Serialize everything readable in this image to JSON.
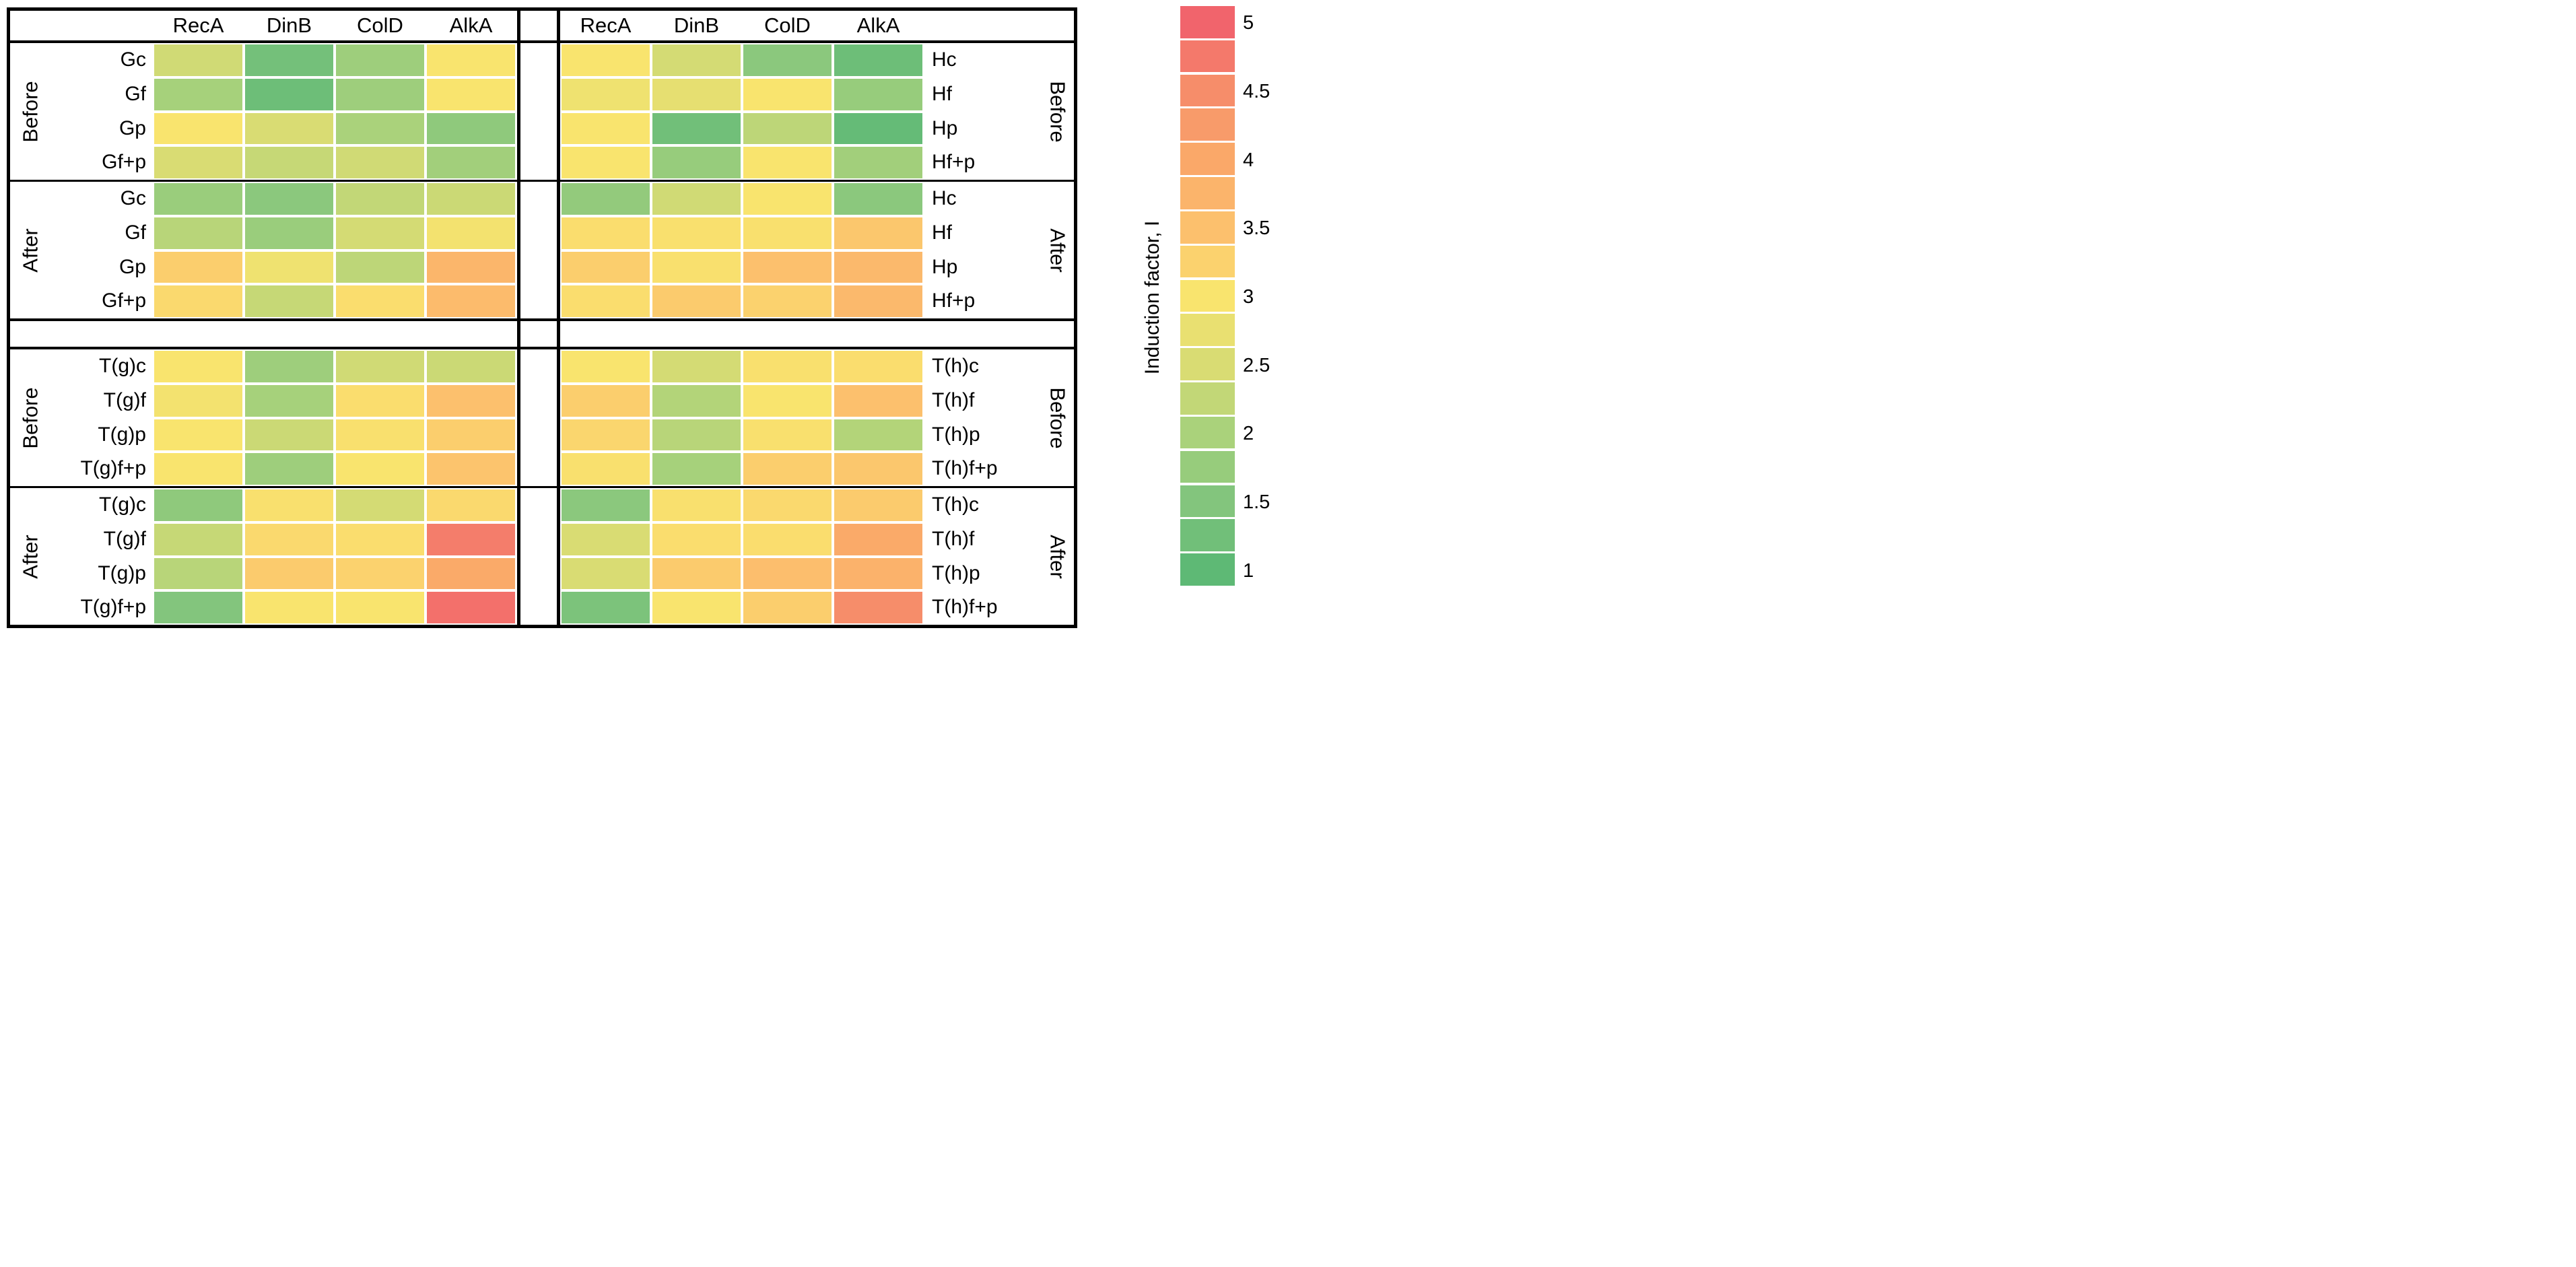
{
  "chart_data": {
    "type": "heatmap",
    "columns": [
      "RecA",
      "DinB",
      "ColD",
      "AlkA"
    ],
    "colorbar": {
      "title": "Induction factor, I",
      "tick_labels": [
        "5",
        "4.5",
        "4",
        "3.5",
        "3",
        "2.5",
        "2",
        "1.5",
        "1"
      ],
      "min": 1,
      "max": 5,
      "n_blocks": 17
    },
    "palette_anchors": [
      {
        "v": 1.0,
        "c": "#5eb975"
      },
      {
        "v": 1.5,
        "c": "#83c57d"
      },
      {
        "v": 2.0,
        "c": "#aad27b"
      },
      {
        "v": 2.5,
        "c": "#d9dc73"
      },
      {
        "v": 3.0,
        "c": "#f9e46e"
      },
      {
        "v": 3.5,
        "c": "#fcc06d"
      },
      {
        "v": 4.0,
        "c": "#faa869"
      },
      {
        "v": 4.5,
        "c": "#f68d6a"
      },
      {
        "v": 5.0,
        "c": "#f1646c"
      }
    ],
    "panels": [
      {
        "id": "left",
        "label_side": "left",
        "sections": [
          {
            "group": "Before",
            "rows": [
              {
                "label": "Gc",
                "values": [
                  2.4,
                  1.3,
                  1.85,
                  3.0
                ]
              },
              {
                "label": "Gf",
                "values": [
                  1.95,
                  1.2,
                  1.85,
                  3.0
                ]
              },
              {
                "label": "Gp",
                "values": [
                  3.0,
                  2.5,
                  2.0,
                  1.65
                ]
              },
              {
                "label": "Gf+p",
                "values": [
                  2.5,
                  2.3,
                  2.4,
                  1.9
                ]
              }
            ]
          },
          {
            "group": "After",
            "rows": [
              {
                "label": "Gc",
                "values": [
                  1.8,
                  1.6,
                  2.25,
                  2.35
                ]
              },
              {
                "label": "Gf",
                "values": [
                  2.15,
                  1.8,
                  2.45,
                  2.9
                ]
              },
              {
                "label": "Gp",
                "values": [
                  3.3,
                  2.85,
                  2.2,
                  3.7
                ]
              },
              {
                "label": "Gf+p",
                "values": [
                  3.15,
                  2.3,
                  3.1,
                  3.6
                ]
              }
            ]
          },
          {
            "group": "Before",
            "rows": [
              {
                "label": "T(g)c",
                "values": [
                  3.0,
                  1.85,
                  2.4,
                  2.35
                ]
              },
              {
                "label": "T(g)f",
                "values": [
                  2.9,
                  1.95,
                  3.1,
                  3.5
                ]
              },
              {
                "label": "T(g)p",
                "values": [
                  3.0,
                  2.35,
                  3.05,
                  3.3
                ]
              },
              {
                "label": "T(g)f+p",
                "values": [
                  3.0,
                  1.85,
                  3.0,
                  3.45
                ]
              }
            ]
          },
          {
            "group": "After",
            "rows": [
              {
                "label": "T(g)c",
                "values": [
                  1.65,
                  3.05,
                  2.45,
                  3.15
                ]
              },
              {
                "label": "T(g)f",
                "values": [
                  2.3,
                  3.15,
                  3.1,
                  4.7
                ]
              },
              {
                "label": "T(g)p",
                "values": [
                  2.15,
                  3.35,
                  3.25,
                  3.95
                ]
              },
              {
                "label": "T(g)f+p",
                "values": [
                  1.5,
                  3.0,
                  3.0,
                  4.85
                ]
              }
            ]
          }
        ]
      },
      {
        "id": "right",
        "label_side": "right",
        "sections": [
          {
            "group": "Before",
            "rows": [
              {
                "label": "Hc",
                "values": [
                  3.0,
                  2.45,
                  1.6,
                  1.2
                ]
              },
              {
                "label": "Hf",
                "values": [
                  2.85,
                  2.7,
                  3.0,
                  1.75
                ]
              },
              {
                "label": "Hp",
                "values": [
                  3.0,
                  1.25,
                  2.2,
                  1.1
                ]
              },
              {
                "label": "Hf+p",
                "values": [
                  3.0,
                  1.75,
                  3.0,
                  1.9
                ]
              }
            ]
          },
          {
            "group": "After",
            "rows": [
              {
                "label": "Hc",
                "values": [
                  1.7,
                  2.4,
                  3.0,
                  1.6
                ]
              },
              {
                "label": "Hf",
                "values": [
                  3.1,
                  3.05,
                  3.05,
                  3.4
                ]
              },
              {
                "label": "Hp",
                "values": [
                  3.3,
                  3.05,
                  3.5,
                  3.65
                ]
              },
              {
                "label": "Hf+p",
                "values": [
                  3.1,
                  3.35,
                  3.25,
                  3.65
                ]
              }
            ]
          },
          {
            "group": "Before",
            "rows": [
              {
                "label": "T(h)c",
                "values": [
                  3.0,
                  2.45,
                  3.05,
                  3.1
                ]
              },
              {
                "label": "T(h)f",
                "values": [
                  3.3,
                  2.1,
                  3.0,
                  3.5
                ]
              },
              {
                "label": "T(h)p",
                "values": [
                  3.2,
                  2.15,
                  3.05,
                  2.1
                ]
              },
              {
                "label": "T(h)f+p",
                "values": [
                  3.05,
                  1.95,
                  3.3,
                  3.4
                ]
              }
            ]
          },
          {
            "group": "After",
            "rows": [
              {
                "label": "T(h)c",
                "values": [
                  1.6,
                  3.05,
                  3.15,
                  3.35
                ]
              },
              {
                "label": "T(h)f",
                "values": [
                  2.5,
                  3.1,
                  3.1,
                  3.95
                ]
              },
              {
                "label": "T(h)p",
                "values": [
                  2.5,
                  3.35,
                  3.55,
                  3.8
                ]
              },
              {
                "label": "T(h)f+p",
                "values": [
                  1.4,
                  3.0,
                  3.3,
                  4.5
                ]
              }
            ]
          }
        ]
      }
    ]
  }
}
